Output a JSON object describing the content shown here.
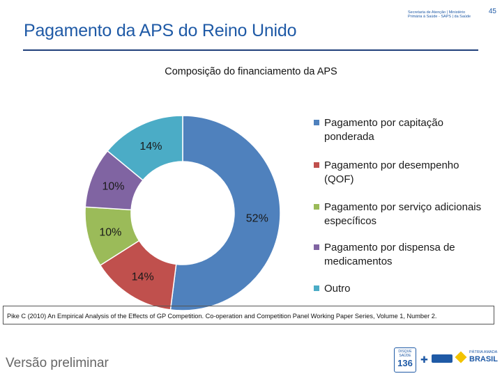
{
  "page": {
    "number": "45",
    "title": "Pagamento da APS do Reino Unido",
    "draft_label": "Versão preliminar",
    "header_logo": {
      "line1": "Secretaria de Atenção | Ministério",
      "line2": "Primária à Saúde - SAPS | da Saúde"
    },
    "footer_logos": {
      "disque_saude": "DISQUE SAÚDE",
      "disque_number": "136",
      "patria_amada": "PÁTRIA AMADA",
      "brasil": "BRASIL"
    },
    "footnote": "Pike C (2010) An Empirical Analysis of the Effects of GP Competition. Co-operation and Competition Panel Working Paper Series, Volume 1, Number 2."
  },
  "chart_data": {
    "type": "pie",
    "title": "Composição do financiamento da APS",
    "donut": true,
    "legend_position": "right",
    "series": [
      {
        "name": "Pagamento por capitação ponderada",
        "value": 52,
        "label": "52%",
        "color": "#4f81bd"
      },
      {
        "name": "Pagamento por desempenho (QOF)",
        "value": 14,
        "label": "14%",
        "color": "#c0504d"
      },
      {
        "name": "Pagamento por serviço adicionais específicos",
        "value": 10,
        "label": "10%",
        "color": "#9bbb59"
      },
      {
        "name": "Pagamento por dispensa de medicamentos",
        "value": 10,
        "label": "10%",
        "color": "#8064a2"
      },
      {
        "name": "Outro",
        "value": 14,
        "label": "14%",
        "color": "#4bacc6"
      }
    ]
  }
}
